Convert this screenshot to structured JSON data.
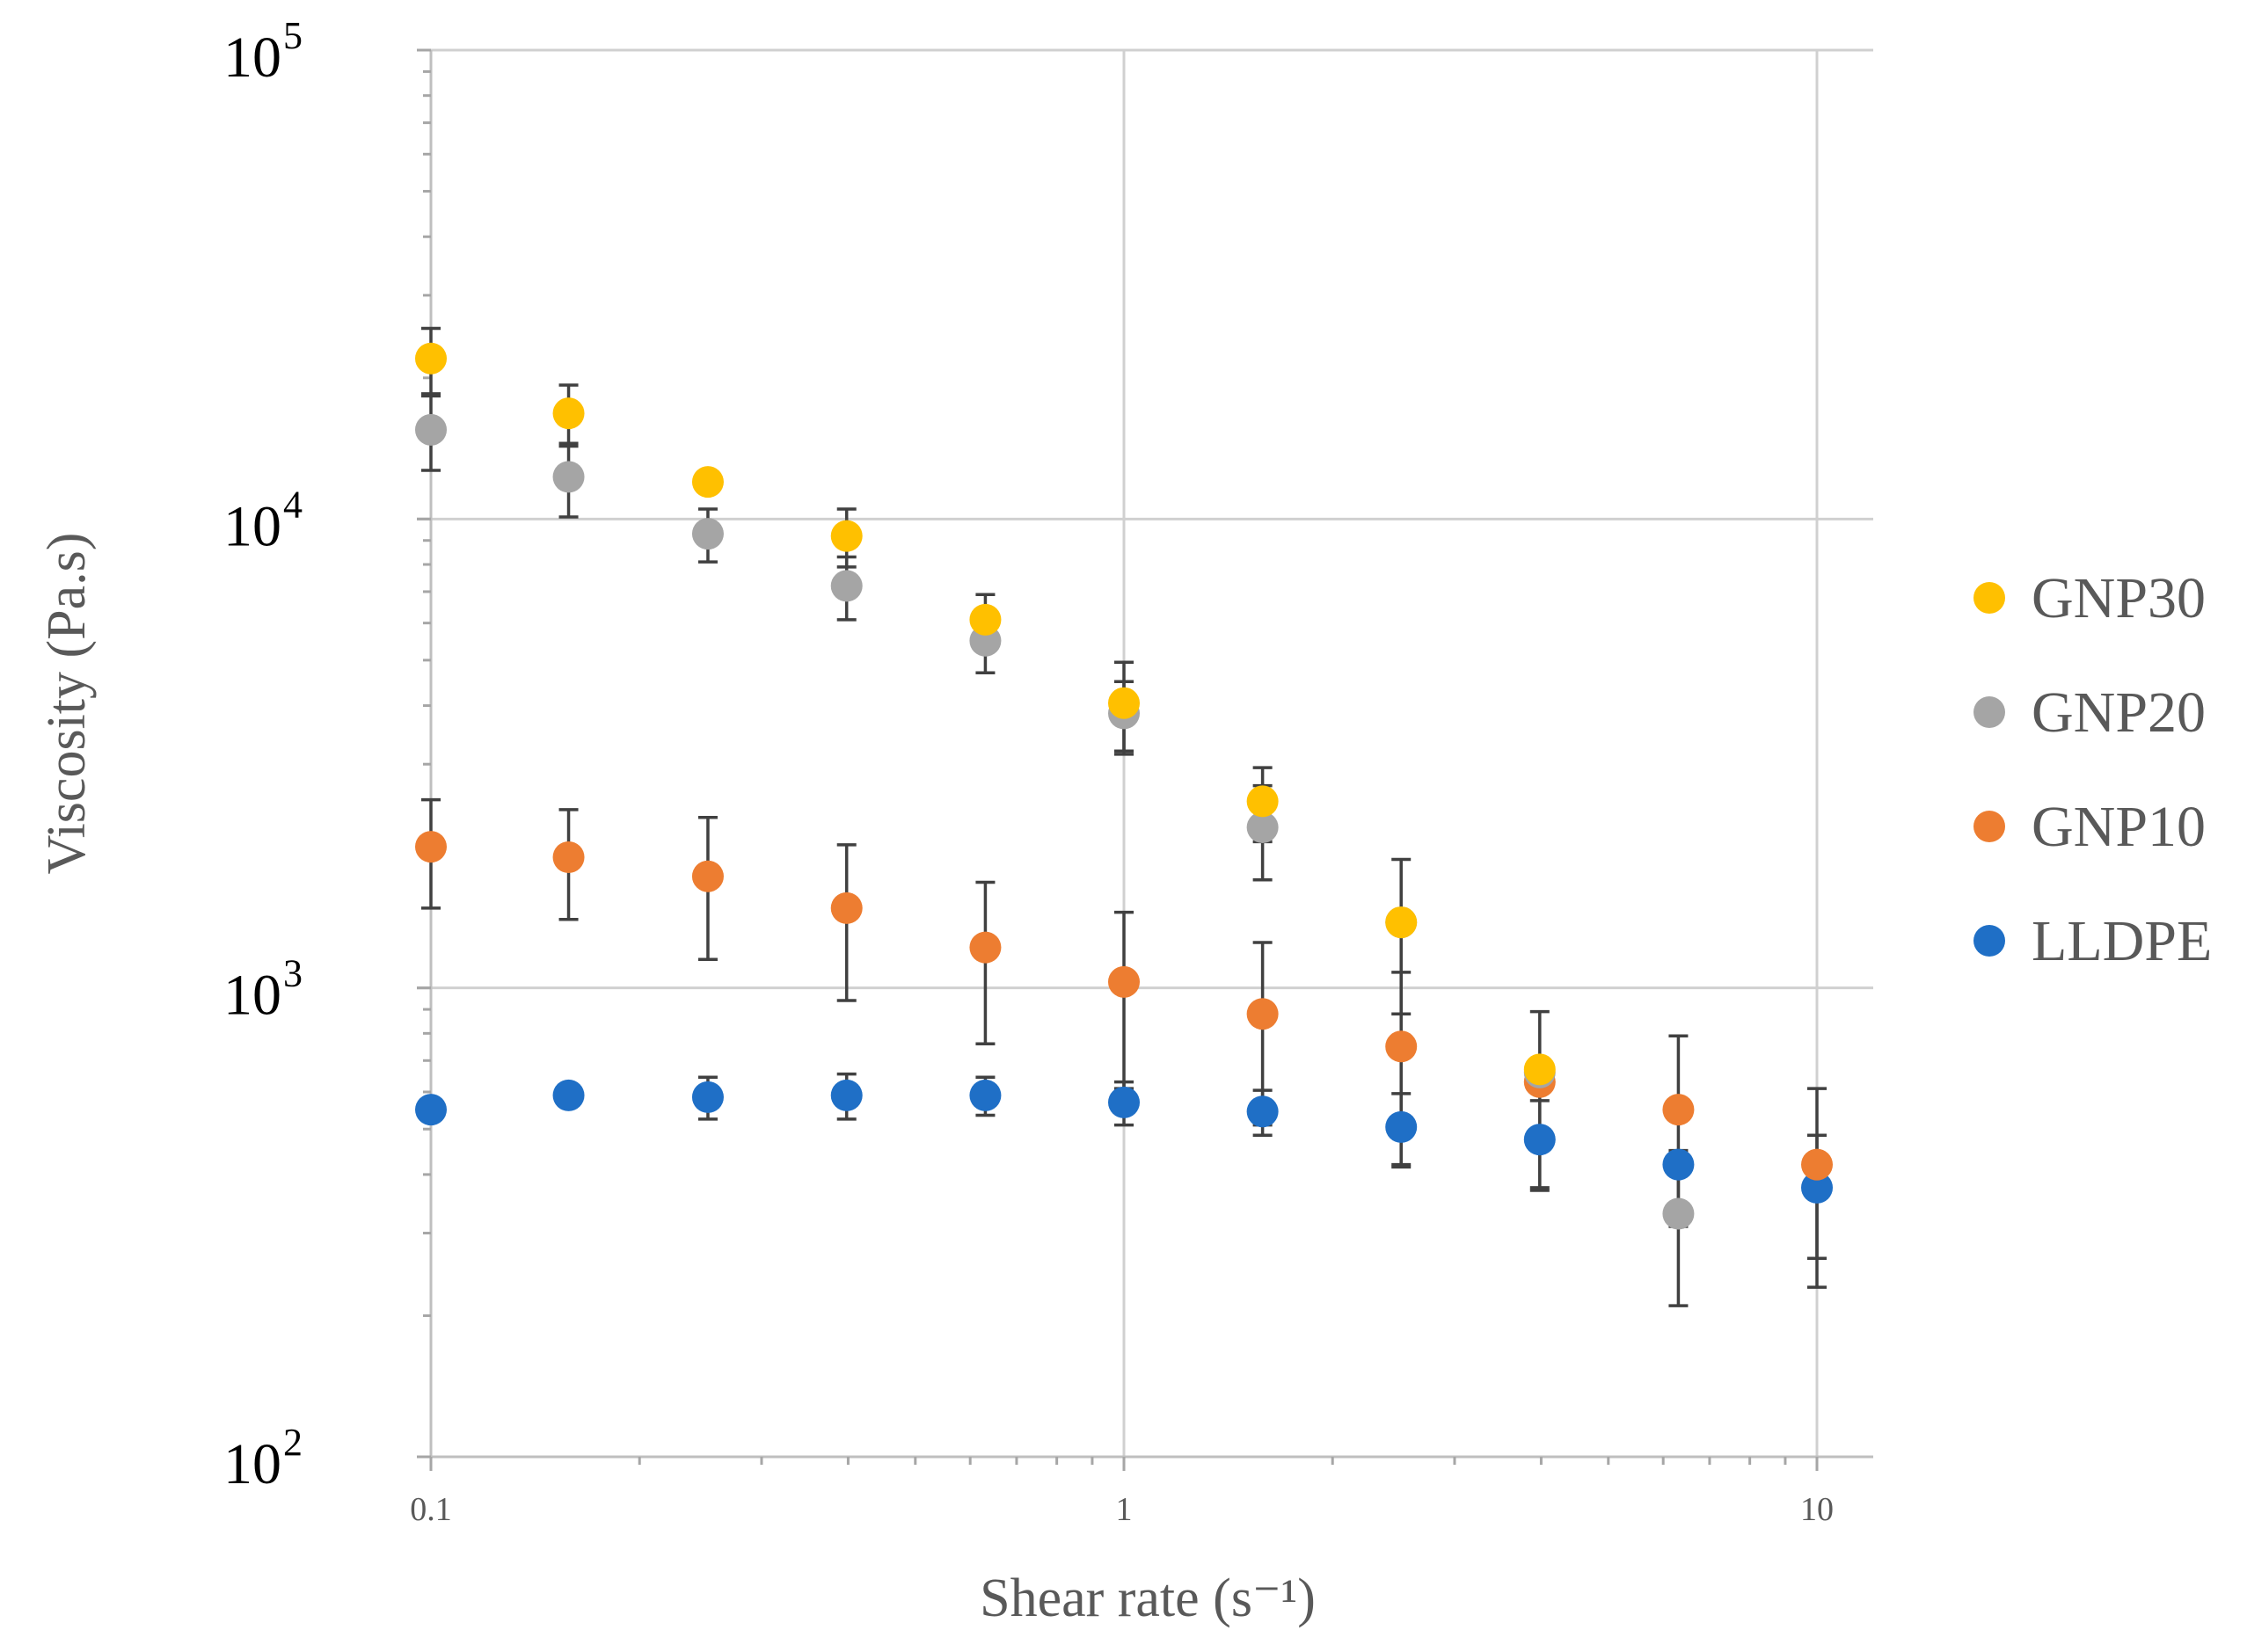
{
  "chart_data": {
    "type": "scatter",
    "xlabel": "Shear rate (s⁻¹)",
    "ylabel": "Viscosity (Pa.s)",
    "x_scale": "log",
    "y_scale": "log",
    "xlim": [
      0.1,
      12
    ],
    "ylim": [
      100,
      100000
    ],
    "x_ticks": [
      {
        "value": 0.1,
        "label": "0.1"
      },
      {
        "value": 1,
        "label": "1"
      },
      {
        "value": 10,
        "label": "10"
      }
    ],
    "y_ticks": [
      {
        "value": 100,
        "base": "10",
        "exp": "2"
      },
      {
        "value": 1000,
        "base": "10",
        "exp": "3"
      },
      {
        "value": 10000,
        "base": "10",
        "exp": "4"
      },
      {
        "value": 100000,
        "base": "10",
        "exp": "5"
      }
    ],
    "grid": true,
    "legend_position": "right",
    "series": [
      {
        "name": "GNP30",
        "color": "#FFC000",
        "points": [
          {
            "x": 0.1,
            "y": 22000,
            "err": 3500
          },
          {
            "x": 0.158,
            "y": 16800,
            "err": 2500
          },
          {
            "x": 0.251,
            "y": 12000,
            "err": 0
          },
          {
            "x": 0.398,
            "y": 9200,
            "err": 1300
          },
          {
            "x": 0.631,
            "y": 6100,
            "err": 800
          },
          {
            "x": 1.0,
            "y": 4050,
            "err": 900
          },
          {
            "x": 1.585,
            "y": 2500,
            "err": 450
          },
          {
            "x": 2.512,
            "y": 1380,
            "err": 0
          },
          {
            "x": 3.981,
            "y": 670,
            "err": 0
          }
        ]
      },
      {
        "name": "GNP20",
        "color": "#A5A5A5",
        "points": [
          {
            "x": 0.1,
            "y": 15500,
            "err": 2800
          },
          {
            "x": 0.158,
            "y": 12300,
            "err": 2200
          },
          {
            "x": 0.251,
            "y": 9300,
            "err": 1200
          },
          {
            "x": 0.398,
            "y": 7200,
            "err": 1100
          },
          {
            "x": 0.631,
            "y": 5500,
            "err": 800
          },
          {
            "x": 1.0,
            "y": 3850,
            "err": 650
          },
          {
            "x": 1.585,
            "y": 2200,
            "err": 500
          },
          {
            "x": 2.512,
            "y": 1380,
            "err": 500
          },
          {
            "x": 3.981,
            "y": 660,
            "err": 0
          },
          {
            "x": 6.31,
            "y": 330,
            "err": 120
          }
        ]
      },
      {
        "name": "GNP10",
        "color": "#ED7D31",
        "points": [
          {
            "x": 0.1,
            "y": 2000,
            "err": 520
          },
          {
            "x": 0.158,
            "y": 1900,
            "err": 500
          },
          {
            "x": 0.251,
            "y": 1730,
            "err": 580
          },
          {
            "x": 0.398,
            "y": 1480,
            "err": 540
          },
          {
            "x": 0.631,
            "y": 1220,
            "err": 460
          },
          {
            "x": 1.0,
            "y": 1030,
            "err": 420
          },
          {
            "x": 1.585,
            "y": 880,
            "err": 370
          },
          {
            "x": 2.512,
            "y": 750,
            "err": 330
          },
          {
            "x": 3.981,
            "y": 630,
            "err": 260
          },
          {
            "x": 6.31,
            "y": 550,
            "err": 240
          },
          {
            "x": 10.0,
            "y": 420,
            "err": 190
          }
        ]
      },
      {
        "name": "LLDPE",
        "color": "#1F6FC6",
        "points": [
          {
            "x": 0.1,
            "y": 550,
            "err": 0
          },
          {
            "x": 0.158,
            "y": 590,
            "err": 0
          },
          {
            "x": 0.251,
            "y": 585,
            "err": 60
          },
          {
            "x": 0.398,
            "y": 590,
            "err": 65
          },
          {
            "x": 0.631,
            "y": 590,
            "err": 55
          },
          {
            "x": 1.0,
            "y": 570,
            "err": 60
          },
          {
            "x": 1.585,
            "y": 545,
            "err": 60
          },
          {
            "x": 2.512,
            "y": 505,
            "err": 90
          },
          {
            "x": 3.981,
            "y": 475,
            "err": 100
          },
          {
            "x": 6.31,
            "y": 420,
            "err": 0
          },
          {
            "x": 10.0,
            "y": 375,
            "err": 110
          }
        ]
      }
    ]
  }
}
